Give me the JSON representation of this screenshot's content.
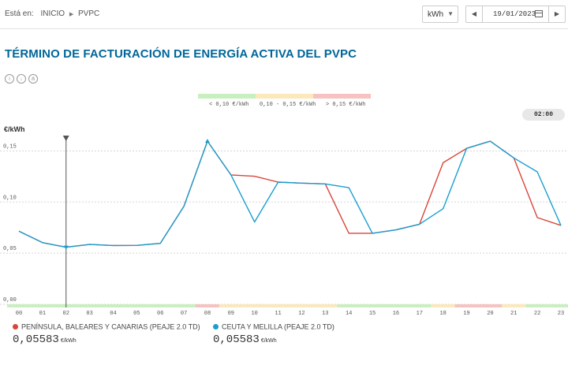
{
  "breadcrumb": {
    "label": "Está en:",
    "items": [
      "INICIO",
      "PVPC"
    ]
  },
  "controls": {
    "unit": "kWh",
    "date": "19/01/2023"
  },
  "page_title": "TÉRMINO DE FACTURACIÓN DE ENERGÍA ACTIVA DEL PVPC",
  "icons": [
    "info-icon",
    "download-icon",
    "share-icon"
  ],
  "price_bands": [
    {
      "label": "< 0,10 €/kWh",
      "color": "#c9efc0"
    },
    {
      "label": "0,10 - 0,15 €/kWh",
      "color": "#fbe9bd"
    },
    {
      "label": "> 0,15 €/kWh",
      "color": "#f6c2c2"
    }
  ],
  "selected_hour": "02:00",
  "chart_data": {
    "type": "line",
    "ylabel": "€/kWh",
    "x": [
      "00",
      "01",
      "02",
      "03",
      "04",
      "05",
      "06",
      "07",
      "08",
      "09",
      "10",
      "11",
      "12",
      "13",
      "14",
      "15",
      "16",
      "17",
      "18",
      "19",
      "20",
      "21",
      "22",
      "23"
    ],
    "ylim": [
      0,
      0.165
    ],
    "yticks": [
      "0,00",
      "0,05",
      "0,10",
      "0,15"
    ],
    "ytick_values": [
      0,
      0.05,
      0.1,
      0.15
    ],
    "selected_index": 2,
    "series": [
      {
        "name": "PENÍNSULA, BALEARES Y CANARIAS (PEAJE 2.0 TD)",
        "color": "#d9453a",
        "values": [
          0.0715,
          0.0603,
          0.0558,
          0.0585,
          0.0575,
          0.0576,
          0.0596,
          0.0958,
          0.1595,
          0.1265,
          0.1252,
          0.1195,
          0.1185,
          0.1177,
          0.0695,
          0.0695,
          0.0728,
          0.0783,
          0.1385,
          0.1525,
          0.1595,
          0.1432,
          0.0848,
          0.0772
        ],
        "value_text": "0,05583",
        "unit": "€/kWh"
      },
      {
        "name": "CEUTA Y MELILLA (PEAJE 2.0 TD)",
        "color": "#1a9ed0",
        "values": [
          0.0715,
          0.0603,
          0.0558,
          0.0585,
          0.0575,
          0.0576,
          0.0596,
          0.0958,
          0.1595,
          0.1265,
          0.0805,
          0.1195,
          0.1185,
          0.1177,
          0.114,
          0.0695,
          0.0728,
          0.0783,
          0.0935,
          0.1525,
          0.1595,
          0.1432,
          0.1295,
          0.0772
        ],
        "value_text": "0,05583",
        "unit": "€/kWh"
      }
    ],
    "hour_bands": [
      "green",
      "green",
      "green",
      "green",
      "green",
      "green",
      "green",
      "green",
      "red",
      "yellow",
      "yellow",
      "yellow",
      "yellow",
      "yellow",
      "green",
      "green",
      "green",
      "green",
      "yellow",
      "red",
      "red",
      "yellow",
      "green",
      "green"
    ]
  }
}
